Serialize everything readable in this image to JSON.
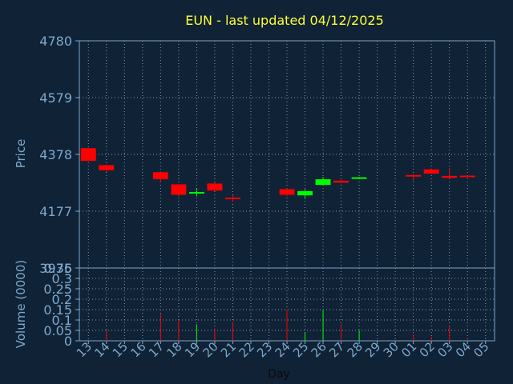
{
  "chart_data": [
    {
      "type": "candlestick",
      "title": "EUN - last updated 04/12/2025",
      "ylabel": "Price",
      "ylim": [
        3976,
        4780
      ],
      "yticks": [
        4780,
        4579,
        4378,
        4177,
        3976
      ],
      "x_labels": [
        "13",
        "14",
        "15",
        "16",
        "17",
        "18",
        "19",
        "20",
        "21",
        "22",
        "23",
        "24",
        "25",
        "26",
        "27",
        "28",
        "29",
        "30",
        "01",
        "02",
        "03",
        "04",
        "05"
      ],
      "grid": true,
      "colors": {
        "up": "#00ff00",
        "down": "#ff0000",
        "text": "#7fa8cc",
        "title": "#ffff33",
        "frame": "#7fa8cc",
        "grid": "#8899aa"
      },
      "candles": [
        {
          "x": "13",
          "open": 4400,
          "high": 4400,
          "close": 4355,
          "low": 4355
        },
        {
          "x": "14",
          "open": 4340,
          "high": 4342,
          "close": 4322,
          "low": 4316
        },
        {
          "x": "17",
          "open": 4315,
          "high": 4318,
          "close": 4290,
          "low": 4280
        },
        {
          "x": "18",
          "open": 4272,
          "high": 4272,
          "close": 4235,
          "low": 4230
        },
        {
          "x": "19",
          "open": 4240,
          "high": 4258,
          "close": 4245,
          "low": 4230
        },
        {
          "x": "20",
          "open": 4275,
          "high": 4278,
          "close": 4250,
          "low": 4248
        },
        {
          "x": "21",
          "open": 4225,
          "high": 4234,
          "close": 4220,
          "low": 4212
        },
        {
          "x": "24",
          "open": 4255,
          "high": 4258,
          "close": 4235,
          "low": 4232
        },
        {
          "x": "25",
          "open": 4233,
          "high": 4255,
          "close": 4248,
          "low": 4220
        },
        {
          "x": "26",
          "open": 4270,
          "high": 4298,
          "close": 4290,
          "low": 4268
        },
        {
          "x": "27",
          "open": 4285,
          "high": 4292,
          "close": 4278,
          "low": 4276
        },
        {
          "x": "28",
          "open": 4294,
          "high": 4298,
          "close": 4297,
          "low": 4292
        },
        {
          "x": "01",
          "open": 4305,
          "high": 4308,
          "close": 4302,
          "low": 4285
        },
        {
          "x": "02",
          "open": 4325,
          "high": 4328,
          "close": 4310,
          "low": 4308
        },
        {
          "x": "03",
          "open": 4302,
          "high": 4330,
          "close": 4295,
          "low": 4292
        },
        {
          "x": "04",
          "open": 4303,
          "high": 4304,
          "close": 4299,
          "low": 4298
        }
      ]
    },
    {
      "type": "bar",
      "ylabel": "Volume (0000)",
      "xlabel": "Day",
      "ylim": [
        0,
        0.35
      ],
      "yticks": [
        0,
        0.05,
        0.1,
        0.15,
        0.2,
        0.25,
        0.3,
        0.35
      ],
      "ytick_labels": [
        "0",
        "0.05",
        "0.1",
        "0.15",
        "0.2",
        "0.25",
        "0.3",
        "0.35"
      ],
      "grid": true,
      "volumes": [
        {
          "x": "13",
          "value": 0,
          "color": "#ff0000"
        },
        {
          "x": "14",
          "value": 0.05,
          "color": "#ff0000"
        },
        {
          "x": "17",
          "value": 0.13,
          "color": "#ff0000"
        },
        {
          "x": "18",
          "value": 0.1,
          "color": "#ff0000"
        },
        {
          "x": "19",
          "value": 0.08,
          "color": "#00ff00"
        },
        {
          "x": "20",
          "value": 0.06,
          "color": "#ff0000"
        },
        {
          "x": "21",
          "value": 0.09,
          "color": "#ff0000"
        },
        {
          "x": "24",
          "value": 0.15,
          "color": "#ff0000"
        },
        {
          "x": "25",
          "value": 0.04,
          "color": "#00ff00"
        },
        {
          "x": "26",
          "value": 0.15,
          "color": "#00ff00"
        },
        {
          "x": "27",
          "value": 0.08,
          "color": "#ff0000"
        },
        {
          "x": "28",
          "value": 0.05,
          "color": "#00ff00"
        },
        {
          "x": "01",
          "value": 0.03,
          "color": "#ff0000"
        },
        {
          "x": "02",
          "value": 0.02,
          "color": "#ff0000"
        },
        {
          "x": "03",
          "value": 0.07,
          "color": "#ff0000"
        },
        {
          "x": "04",
          "value": 0.01,
          "color": "#ff0000"
        }
      ]
    }
  ]
}
